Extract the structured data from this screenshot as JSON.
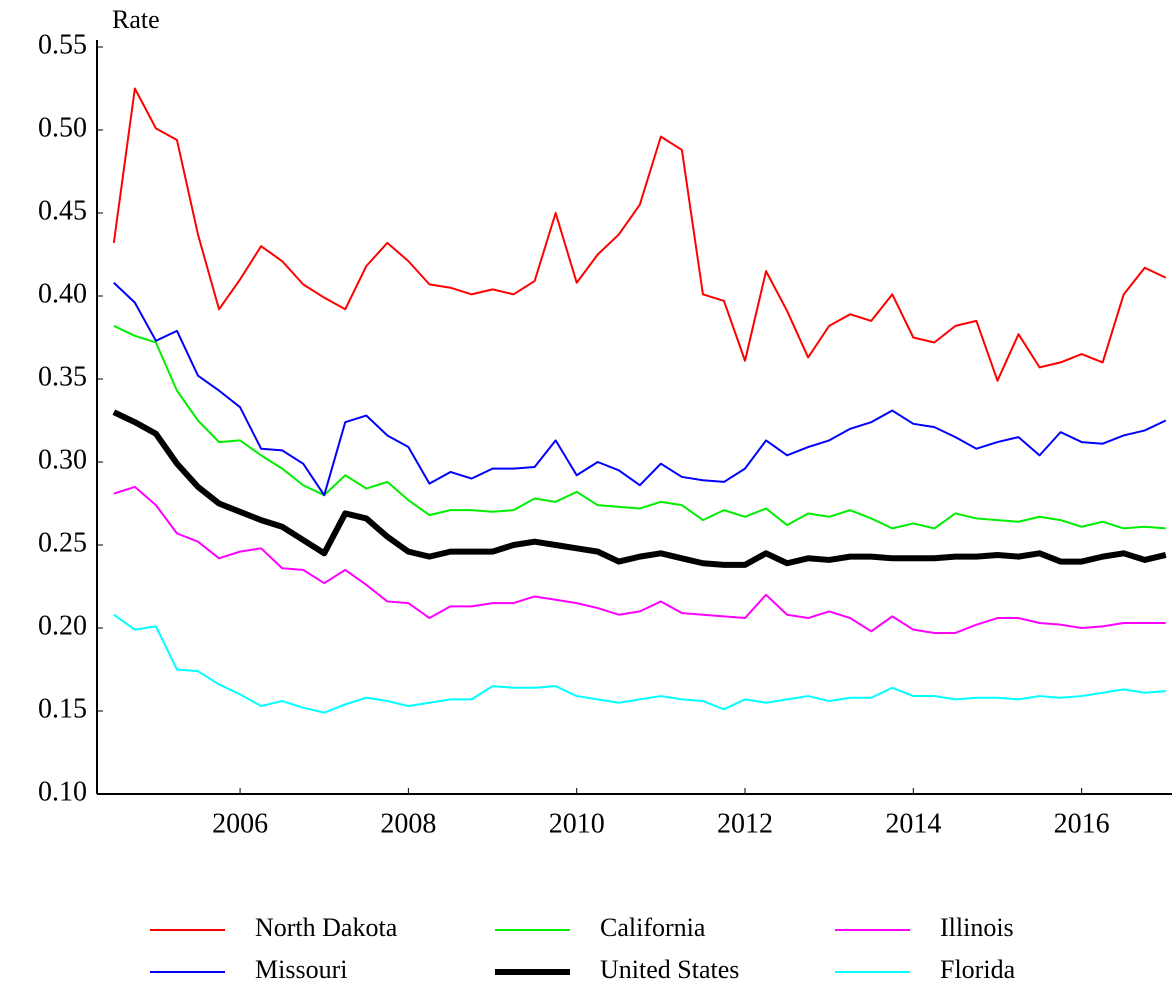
{
  "chart_data": {
    "type": "line",
    "y_label": "Rate",
    "x": [
      2004.5,
      2004.75,
      2005,
      2005.25,
      2005.5,
      2005.75,
      2006,
      2006.25,
      2006.5,
      2006.75,
      2007,
      2007.25,
      2007.5,
      2007.75,
      2008,
      2008.25,
      2008.5,
      2008.75,
      2009,
      2009.25,
      2009.5,
      2009.75,
      2010,
      2010.25,
      2010.5,
      2010.75,
      2011,
      2011.25,
      2011.5,
      2011.75,
      2012,
      2012.25,
      2012.5,
      2012.75,
      2013,
      2013.25,
      2013.5,
      2013.75,
      2014,
      2014.25,
      2014.5,
      2014.75,
      2015,
      2015.25,
      2015.5,
      2015.75,
      2016,
      2016.25,
      2016.5,
      2016.75,
      2017
    ],
    "xlim": [
      2004.3,
      2017.05
    ],
    "xticks": [
      2006,
      2008,
      2010,
      2012,
      2014,
      2016
    ],
    "ylim": [
      0.1,
      0.55
    ],
    "yticks": [
      {
        "value": 0.1,
        "label": "0.10"
      },
      {
        "value": 0.15,
        "label": "0.15"
      },
      {
        "value": 0.2,
        "label": "0.20"
      },
      {
        "value": 0.25,
        "label": "0.25"
      },
      {
        "value": 0.3,
        "label": "0.30"
      },
      {
        "value": 0.35,
        "label": "0.35"
      },
      {
        "value": 0.4,
        "label": "0.40"
      },
      {
        "value": 0.45,
        "label": "0.45"
      },
      {
        "value": 0.5,
        "label": "0.50"
      },
      {
        "value": 0.55,
        "label": "0.55"
      }
    ],
    "grid": false,
    "series": [
      {
        "name": "North Dakota",
        "color": "#ff0000",
        "linewidth": 2,
        "values": [
          0.432,
          0.525,
          0.501,
          0.494,
          0.437,
          0.392,
          0.41,
          0.43,
          0.421,
          0.407,
          0.399,
          0.392,
          0.418,
          0.432,
          0.421,
          0.407,
          0.405,
          0.401,
          0.404,
          0.401,
          0.409,
          0.45,
          0.408,
          0.425,
          0.437,
          0.455,
          0.496,
          0.488,
          0.401,
          0.397,
          0.361,
          0.415,
          0.391,
          0.363,
          0.382,
          0.389,
          0.385,
          0.401,
          0.375,
          0.372,
          0.382,
          0.385,
          0.349,
          0.377,
          0.357,
          0.36,
          0.365,
          0.36,
          0.401,
          0.417,
          0.411
        ]
      },
      {
        "name": "California",
        "color": "#00ee00",
        "linewidth": 2,
        "values": [
          0.382,
          0.376,
          0.372,
          0.343,
          0.325,
          0.312,
          0.313,
          0.304,
          0.296,
          0.286,
          0.28,
          0.292,
          0.284,
          0.288,
          0.277,
          0.268,
          0.271,
          0.271,
          0.27,
          0.271,
          0.278,
          0.276,
          0.282,
          0.274,
          0.273,
          0.272,
          0.276,
          0.274,
          0.265,
          0.271,
          0.267,
          0.272,
          0.262,
          0.269,
          0.267,
          0.271,
          0.266,
          0.26,
          0.263,
          0.26,
          0.269,
          0.266,
          0.265,
          0.264,
          0.267,
          0.265,
          0.261,
          0.264,
          0.26,
          0.261,
          0.26
        ]
      },
      {
        "name": "Illinois",
        "color": "#ff00ff",
        "linewidth": 2,
        "values": [
          0.281,
          0.285,
          0.274,
          0.257,
          0.252,
          0.242,
          0.246,
          0.248,
          0.236,
          0.235,
          0.227,
          0.235,
          0.226,
          0.216,
          0.215,
          0.206,
          0.213,
          0.213,
          0.215,
          0.215,
          0.219,
          0.217,
          0.215,
          0.212,
          0.208,
          0.21,
          0.216,
          0.209,
          0.208,
          0.207,
          0.206,
          0.22,
          0.208,
          0.206,
          0.21,
          0.206,
          0.198,
          0.207,
          0.199,
          0.197,
          0.197,
          0.202,
          0.206,
          0.206,
          0.203,
          0.202,
          0.2,
          0.201,
          0.203,
          0.203,
          0.203
        ]
      },
      {
        "name": "Missouri",
        "color": "#0000ff",
        "linewidth": 2,
        "values": [
          0.408,
          0.396,
          0.373,
          0.379,
          0.352,
          0.343,
          0.333,
          0.308,
          0.307,
          0.299,
          0.28,
          0.324,
          0.328,
          0.316,
          0.309,
          0.287,
          0.294,
          0.29,
          0.296,
          0.296,
          0.297,
          0.313,
          0.292,
          0.3,
          0.295,
          0.286,
          0.299,
          0.291,
          0.289,
          0.288,
          0.296,
          0.313,
          0.304,
          0.309,
          0.313,
          0.32,
          0.324,
          0.331,
          0.323,
          0.321,
          0.315,
          0.308,
          0.312,
          0.315,
          0.304,
          0.318,
          0.312,
          0.311,
          0.316,
          0.319,
          0.325
        ]
      },
      {
        "name": "United States",
        "color": "#000000",
        "linewidth": 6,
        "values": [
          0.33,
          0.324,
          0.317,
          0.299,
          0.285,
          0.275,
          0.27,
          0.265,
          0.261,
          0.253,
          0.245,
          0.269,
          0.266,
          0.255,
          0.246,
          0.243,
          0.246,
          0.246,
          0.246,
          0.25,
          0.252,
          0.25,
          0.248,
          0.246,
          0.24,
          0.243,
          0.245,
          0.242,
          0.239,
          0.238,
          0.238,
          0.245,
          0.239,
          0.242,
          0.241,
          0.243,
          0.243,
          0.242,
          0.242,
          0.242,
          0.243,
          0.243,
          0.244,
          0.243,
          0.245,
          0.24,
          0.24,
          0.243,
          0.245,
          0.241,
          0.244
        ]
      },
      {
        "name": "Florida",
        "color": "#00ffff",
        "linewidth": 2,
        "values": [
          0.208,
          0.199,
          0.201,
          0.175,
          0.174,
          0.166,
          0.16,
          0.153,
          0.156,
          0.152,
          0.149,
          0.154,
          0.158,
          0.156,
          0.153,
          0.155,
          0.157,
          0.157,
          0.165,
          0.164,
          0.164,
          0.165,
          0.159,
          0.157,
          0.155,
          0.157,
          0.159,
          0.157,
          0.156,
          0.151,
          0.157,
          0.155,
          0.157,
          0.159,
          0.156,
          0.158,
          0.158,
          0.164,
          0.159,
          0.159,
          0.157,
          0.158,
          0.158,
          0.157,
          0.159,
          0.158,
          0.159,
          0.161,
          0.163,
          0.161,
          0.162
        ]
      }
    ]
  }
}
